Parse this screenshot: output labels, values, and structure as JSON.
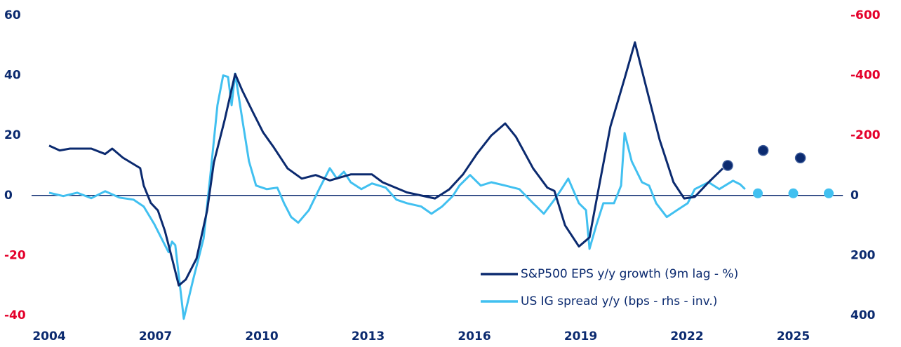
{
  "chart_data": {
    "type": "line",
    "xlim": [
      2004,
      2026.4
    ],
    "xticks": [
      2004,
      2007,
      2010,
      2013,
      2016,
      2019,
      2022,
      2025
    ],
    "ylim": [
      -40,
      60
    ],
    "yticks": [
      60,
      40,
      20,
      0,
      -20,
      -40
    ],
    "y2lim": [
      -600,
      400
    ],
    "y2_inverted": true,
    "y2ticks": [
      -600,
      -400,
      -200,
      0,
      200,
      400
    ],
    "tick_colors": {
      "positive": "#0b2a6f",
      "negative": "#e4002b"
    },
    "legend": "lower-right",
    "series": [
      {
        "name": "S&P500 EPS y/y growth (9m lag - %)",
        "color": "#0b2a6f",
        "x": [
          2004.0,
          2004.3,
          2004.59,
          2005.19,
          2005.58,
          2005.78,
          2006.08,
          2006.57,
          2006.67,
          2006.87,
          2007.07,
          2007.27,
          2007.47,
          2007.66,
          2007.86,
          2008.16,
          2008.46,
          2008.65,
          2008.95,
          2009.25,
          2009.45,
          2009.74,
          2010.04,
          2010.34,
          2010.73,
          2011.13,
          2011.52,
          2011.92,
          2012.51,
          2013.11,
          2013.41,
          2014.1,
          2014.89,
          2015.29,
          2015.68,
          2016.08,
          2016.48,
          2016.87,
          2017.17,
          2017.66,
          2018.06,
          2018.26,
          2018.56,
          2018.95,
          2019.25,
          2019.54,
          2019.84,
          2020.24,
          2020.53,
          2020.83,
          2021.23,
          2021.62,
          2021.92,
          2022.22,
          2022.61,
          2023.01
        ],
        "values": [
          16.6,
          15,
          15.6,
          15.6,
          13.8,
          15.6,
          12.6,
          9.1,
          3.3,
          -2.5,
          -5,
          -11.9,
          -21,
          -30,
          -28,
          -21,
          -5,
          11,
          25,
          40.5,
          35,
          28,
          21,
          16,
          9,
          5.6,
          6.8,
          5,
          7,
          7,
          4.4,
          1,
          -1,
          2,
          7,
          14,
          20,
          24,
          19.6,
          9,
          2.6,
          1.5,
          -10,
          -17,
          -14,
          4.4,
          23,
          39,
          51,
          37,
          18.5,
          4.4,
          -1,
          -0.5,
          4.4,
          9
        ]
      },
      {
        "name": "US IG spread y/y (bps - rhs - inv.)",
        "color": "#41c0f0",
        "axis": "y2",
        "x": [
          2004.0,
          2004.4,
          2004.79,
          2005.19,
          2005.58,
          2005.98,
          2006.38,
          2006.67,
          2006.97,
          2007.27,
          2007.37,
          2007.47,
          2007.56,
          2007.8,
          2008.06,
          2008.36,
          2008.55,
          2008.75,
          2008.91,
          2009.05,
          2009.15,
          2009.25,
          2009.45,
          2009.64,
          2009.84,
          2010.14,
          2010.44,
          2010.63,
          2010.83,
          2011.03,
          2011.33,
          2011.62,
          2011.92,
          2012.12,
          2012.32,
          2012.51,
          2012.81,
          2013.11,
          2013.5,
          2013.8,
          2014.1,
          2014.5,
          2014.79,
          2015.09,
          2015.39,
          2015.58,
          2015.88,
          2016.18,
          2016.48,
          2016.87,
          2017.27,
          2017.66,
          2017.96,
          2018.26,
          2018.46,
          2018.65,
          2018.95,
          2019.15,
          2019.25,
          2019.45,
          2019.64,
          2019.94,
          2020.14,
          2020.24,
          2020.44,
          2020.73,
          2020.93,
          2021.13,
          2021.43,
          2021.72,
          2022.02,
          2022.22,
          2022.61,
          2022.91,
          2023.3,
          2023.5,
          2023.64
        ],
        "values": [
          -9,
          2,
          -9,
          9,
          -14,
          7,
          14,
          37,
          96,
          166,
          189,
          154,
          166,
          411,
          283,
          143,
          -68,
          -301,
          -400,
          -395,
          -301,
          -406,
          -255,
          -114,
          -33,
          -21,
          -26,
          26,
          72,
          91,
          49,
          -21,
          -91,
          -56,
          -79,
          -44,
          -21,
          -40,
          -26,
          14,
          26,
          37,
          61,
          37,
          2,
          -33,
          -68,
          -33,
          -44,
          -33,
          -21,
          26,
          61,
          14,
          -21,
          -56,
          26,
          49,
          178,
          96,
          26,
          26,
          -33,
          -208,
          -114,
          -44,
          -33,
          26,
          72,
          49,
          26,
          -21,
          -44,
          -21,
          -49,
          -37,
          -21
        ]
      }
    ],
    "forecast_points": [
      {
        "color": "#0b2a6f",
        "x": [
          2023.15,
          2024.15,
          2025.2
        ],
        "values": [
          10,
          15,
          12.5
        ]
      },
      {
        "color": "#41c0f0",
        "axis": "y2",
        "x": [
          2024.0,
          2025.0,
          2026.0
        ],
        "values": [
          -7,
          -7,
          -7
        ]
      }
    ]
  }
}
